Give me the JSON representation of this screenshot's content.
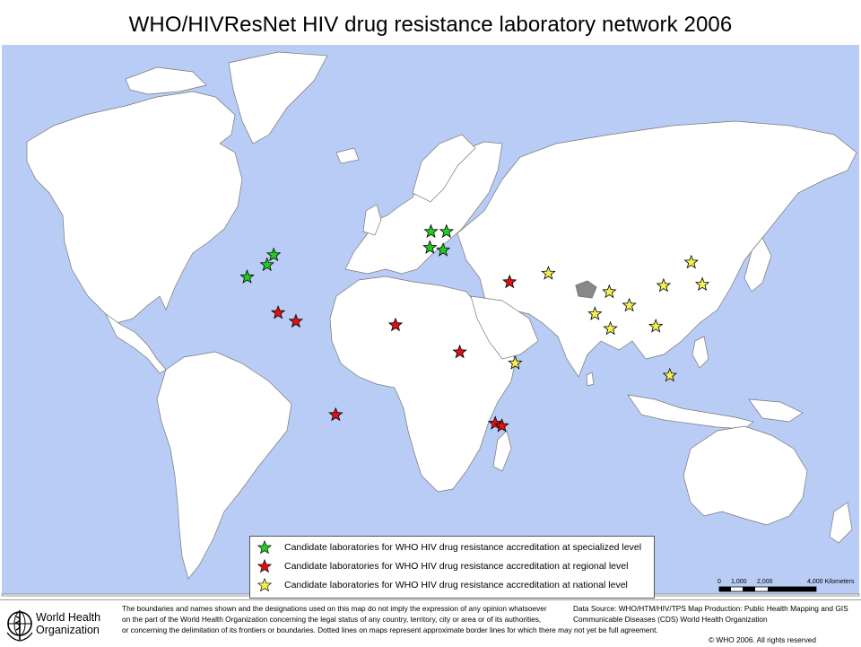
{
  "title": "WHO/HIVResNet HIV drug resistance laboratory network 2006",
  "colors": {
    "ocean": "#b9ccf5",
    "land": "#ffffff",
    "border": "#777777",
    "specialized": "#22cc22",
    "regional": "#dd1111",
    "national": "#f5f050",
    "highlight_region": "#888888"
  },
  "legend": {
    "specialized": "Candidate laboratories for WHO HIV drug resistance accreditation at specialized level",
    "regional": "Candidate laboratories for WHO HIV drug resistance accreditation at regional level",
    "national": "Candidate laboratories for WHO HIV drug resistance accreditation at national level"
  },
  "scale": {
    "labels": [
      "0",
      "1,000",
      "2,000",
      "4,000 Kilometers"
    ]
  },
  "markers": {
    "specialized": [
      {
        "lon": -72,
        "lat": 43
      },
      {
        "lon": -75,
        "lat": 39
      },
      {
        "lon": -84,
        "lat": 34
      },
      {
        "lon": -1,
        "lat": 52.5
      },
      {
        "lon": 6,
        "lat": 52.5
      },
      {
        "lon": -1.5,
        "lat": 46
      },
      {
        "lon": 4.5,
        "lat": 45
      }
    ],
    "regional": [
      {
        "lon": -70,
        "lat": 19.5
      },
      {
        "lon": -62,
        "lat": 16
      },
      {
        "lon": 34.5,
        "lat": 32
      },
      {
        "lon": -17,
        "lat": 14.5
      },
      {
        "lon": 12,
        "lat": 3.5
      },
      {
        "lon": -44,
        "lat": -22
      },
      {
        "lon": 28,
        "lat": -25.5
      },
      {
        "lon": 31,
        "lat": -26.5
      }
    ],
    "national": [
      {
        "lon": 52,
        "lat": 35.5
      },
      {
        "lon": 79.5,
        "lat": 28
      },
      {
        "lon": 73,
        "lat": 19
      },
      {
        "lon": 80,
        "lat": 13
      },
      {
        "lon": 88.5,
        "lat": 22.5
      },
      {
        "lon": 100.5,
        "lat": 14
      },
      {
        "lon": 106.8,
        "lat": -6
      },
      {
        "lon": 116.5,
        "lat": 40
      },
      {
        "lon": 121.5,
        "lat": 31
      },
      {
        "lon": 104,
        "lat": 30.5
      },
      {
        "lon": 37,
        "lat": -1
      }
    ]
  },
  "footer": {
    "org_name_line1": "World Health",
    "org_name_line2": "Organization",
    "disclaimer": [
      "The boundaries and names shown and the designations used on this map do not imply the expression of any opinion whatsoever",
      "on the part of the World Health Organization concerning the legal status of any country, territory, city or area or of its authorities,",
      "or concerning the delimitation of its frontiers or boundaries.  Dotted lines on maps represent approximate border lines for which there may not yet be full agreement."
    ],
    "source": [
      "Data Source: WHO/HTM/HIV/TPS Map Production: Public Health Mapping and GIS",
      "Communicable Diseases (CDS) World Health Organization"
    ],
    "copyright": "© WHO 2006. All rights reserved"
  }
}
